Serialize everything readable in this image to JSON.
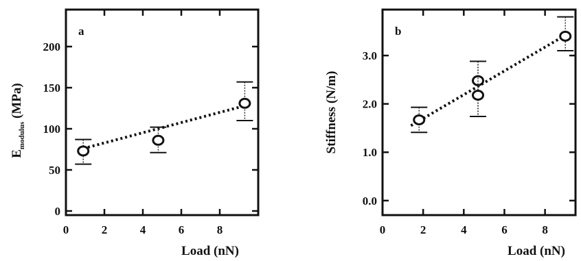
{
  "chart_data": [
    {
      "type": "scatter",
      "panel_label": "a",
      "xlabel": "Load (nN)",
      "ylabel_main": "E",
      "ylabel_sub": "modulus",
      "ylabel_unit": " (MPa)",
      "xlim": [
        0,
        10
      ],
      "ylim": [
        -5,
        245
      ],
      "x_ticks": [
        0,
        2,
        4,
        6,
        8
      ],
      "y_ticks": [
        0,
        50,
        100,
        150,
        200
      ],
      "grid": false,
      "points": [
        {
          "x": 0.9,
          "y": 73,
          "err_low": 57,
          "err_high": 87
        },
        {
          "x": 4.8,
          "y": 86,
          "err_low": 71,
          "err_high": 102
        },
        {
          "x": 9.3,
          "y": 131,
          "err_low": 110,
          "err_high": 157
        }
      ],
      "trendline": {
        "x": [
          0.9,
          9.3
        ],
        "y": [
          76,
          128
        ]
      }
    },
    {
      "type": "scatter",
      "panel_label": "b",
      "xlabel": "Load (nN)",
      "ylabel_main": "Stiffness",
      "ylabel_sub": "",
      "ylabel_unit": " (N/m)",
      "xlim": [
        0,
        9.5
      ],
      "ylim": [
        -0.3,
        3.95
      ],
      "x_ticks": [
        0,
        2,
        4,
        6,
        8
      ],
      "y_ticks": [
        0.0,
        1.0,
        2.0,
        3.0
      ],
      "y_tick_labels": [
        "0.0",
        "1.0",
        "2.0",
        "3.0"
      ],
      "grid": false,
      "points": [
        {
          "x": 1.8,
          "y": 1.67,
          "err_low": 1.41,
          "err_high": 1.93
        },
        {
          "x": 4.7,
          "y": 2.48,
          "err_low": 1.74,
          "err_high": 2.88
        },
        {
          "x": 4.7,
          "y": 2.18,
          "err_low": 1.74,
          "err_high": 2.88
        },
        {
          "x": 9.0,
          "y": 3.4,
          "err_low": 3.1,
          "err_high": 3.8
        }
      ],
      "trendline": {
        "x": [
          1.4,
          9.0
        ],
        "y": [
          1.55,
          3.42
        ]
      }
    }
  ]
}
